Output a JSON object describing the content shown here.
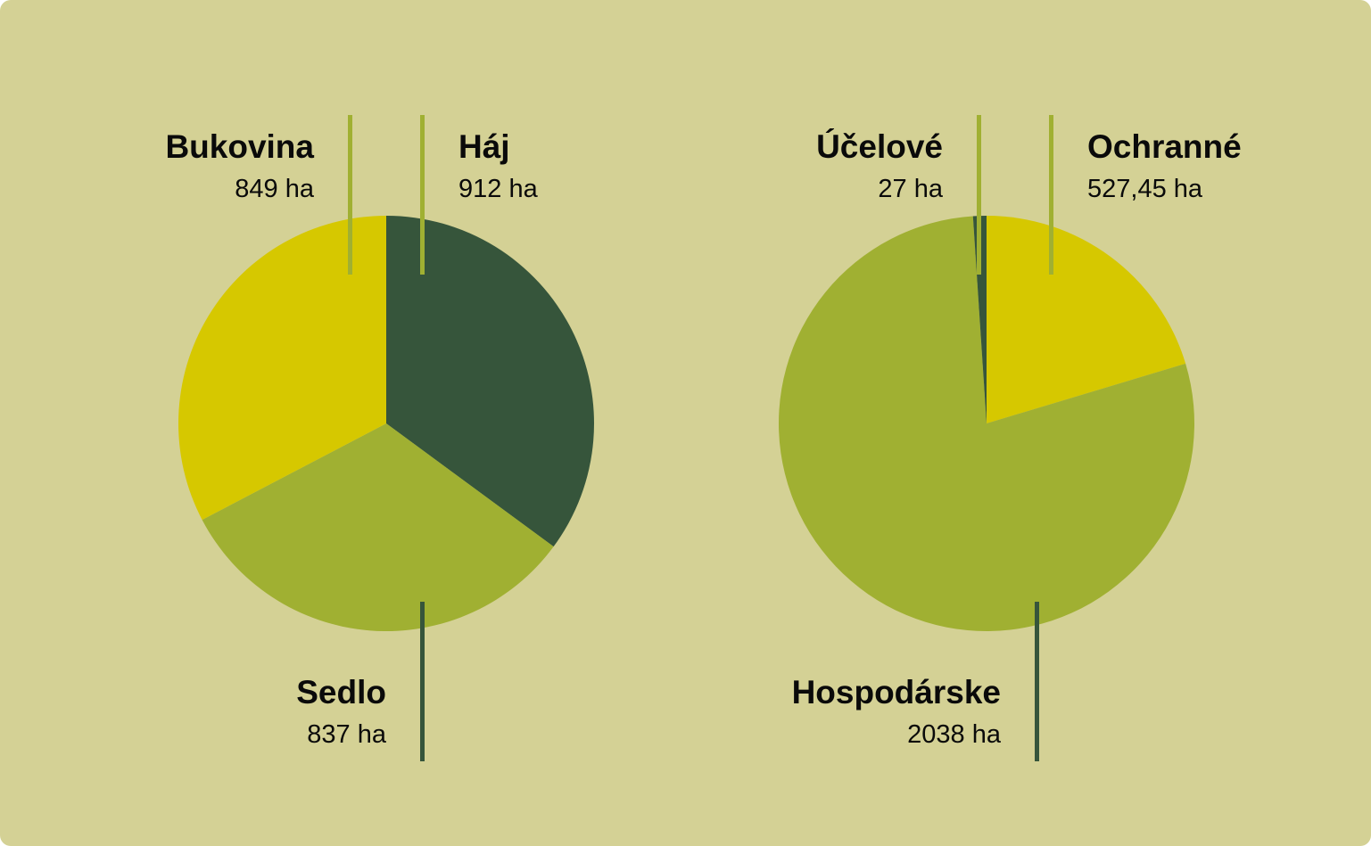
{
  "colors": {
    "background": "#d4d195",
    "yellow": "#d6c800",
    "olive": "#a0b032",
    "dark_green": "#36553b"
  },
  "chart_data": [
    {
      "type": "pie",
      "slices": [
        {
          "label": "Háj",
          "value": 912,
          "value_label": "912 ha",
          "color": "#36553b"
        },
        {
          "label": "Sedlo",
          "value": 837,
          "value_label": "837 ha",
          "color": "#a0b032"
        },
        {
          "label": "Bukovina",
          "value": 849,
          "value_label": "849 ha",
          "color": "#d6c800"
        }
      ]
    },
    {
      "type": "pie",
      "slices": [
        {
          "label": "Ochranné",
          "value": 527.45,
          "value_label": "527,45 ha",
          "color": "#d6c800"
        },
        {
          "label": "Hospodárske",
          "value": 2038,
          "value_label": "2038 ha",
          "color": "#a0b032"
        },
        {
          "label": "Účelové",
          "value": 27,
          "value_label": "27 ha",
          "color": "#36553b"
        }
      ]
    }
  ]
}
